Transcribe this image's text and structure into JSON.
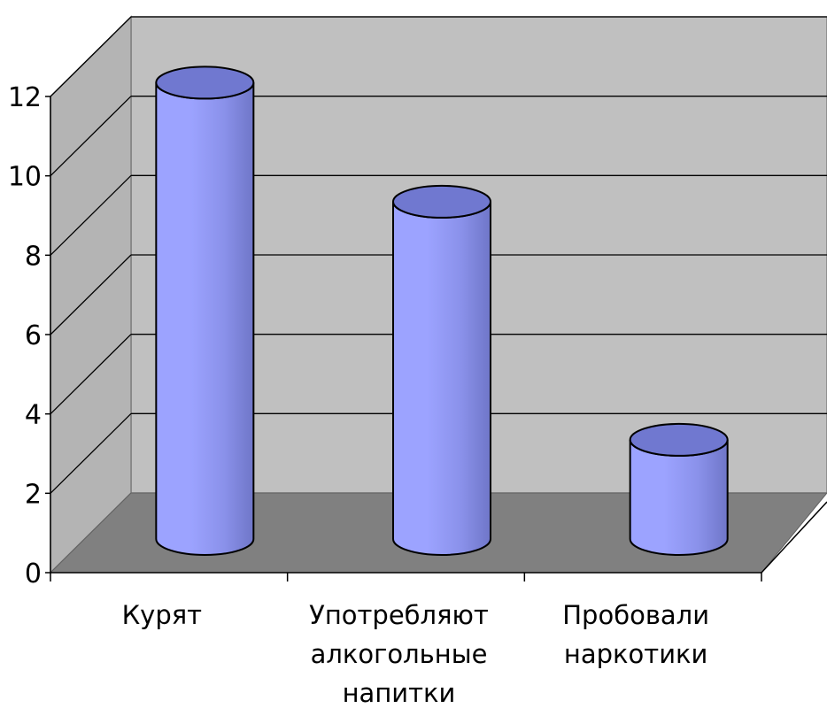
{
  "chart_data": {
    "type": "bar",
    "style": "3d-cylinder",
    "categories": [
      [
        "Курят"
      ],
      [
        "Употребляют",
        "алкогольные",
        "напитки"
      ],
      [
        "Пробовали",
        "наркотики"
      ]
    ],
    "values": [
      11.5,
      8.5,
      2.5
    ],
    "ylim": [
      0,
      12
    ],
    "yticks": [
      "0",
      "2",
      "4",
      "6",
      "8",
      "10",
      "12"
    ],
    "grid": true,
    "legend": "none",
    "colors": {
      "bar_front_light": "#9ca3ff",
      "bar_front_mid": "#8a91ea",
      "bar_front_dark": "#6f76c8",
      "bar_top": "#7078d0",
      "back_wall": "#c0c0c0",
      "side_wall": "#b4b4b4",
      "floor": "#808080",
      "outline": "#000000"
    }
  }
}
